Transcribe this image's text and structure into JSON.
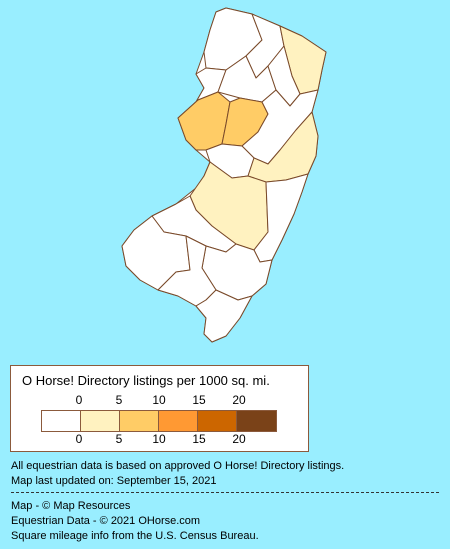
{
  "map": {
    "region": "New Jersey",
    "colors": {
      "land_base": "#ffffff",
      "border": "#7a4a2a",
      "background": "#99EEFF"
    },
    "highlighted_counties": [
      {
        "shade": "#fff2c0",
        "level": "0-5"
      },
      {
        "shade": "#fff2c0",
        "level": "0-5"
      },
      {
        "shade": "#fff2c0",
        "level": "0-5"
      },
      {
        "shade": "#ffcc66",
        "level": "5-10"
      },
      {
        "shade": "#ffcc66",
        "level": "5-10"
      }
    ]
  },
  "legend": {
    "title": "O Horse! Directory listings per 1000 sq. mi.",
    "top_ticks": [
      "0",
      "5",
      "10",
      "15",
      "20"
    ],
    "bottom_ticks": [
      "0",
      "5",
      "10",
      "15",
      "20"
    ],
    "swatch_colors": [
      "#ffffff",
      "#fff2c0",
      "#ffcc66",
      "#ff9933",
      "#cc6600",
      "#7a4218"
    ]
  },
  "notes": {
    "line1": "All equestrian data is based on approved O Horse! Directory listings.",
    "line2": "Map last updated on: September 15, 2021"
  },
  "credits": {
    "line1": "Map - © Map Resources",
    "line2": "Equestrian Data - © 2021 OHorse.com",
    "line3": "Square mileage info from the U.S. Census Bureau."
  }
}
